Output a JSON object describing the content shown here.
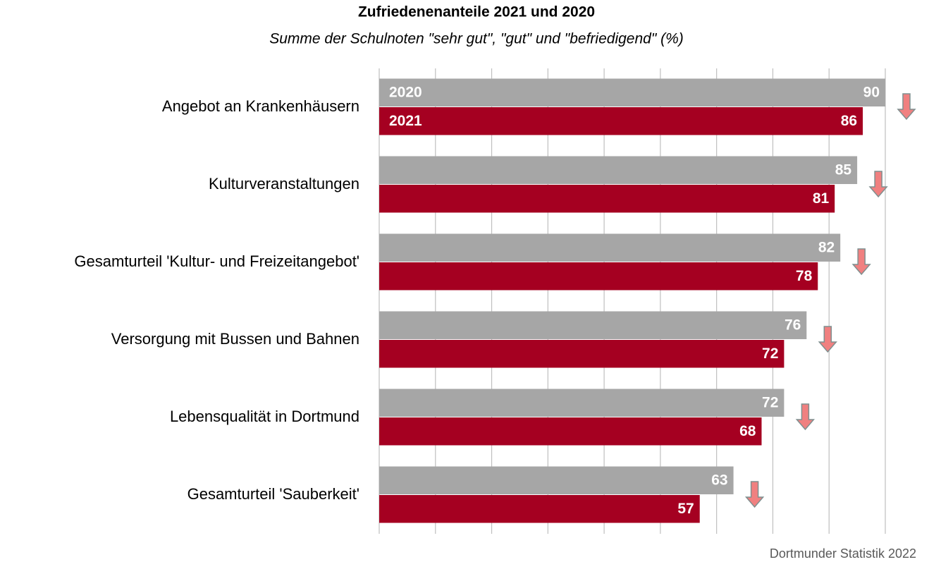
{
  "chart_data": {
    "type": "barh",
    "title": "Zufriedenenanteile 2021 und 2020",
    "subtitle": "Summe der Schulnoten \"sehr gut\", \"gut\" und \"befriedigend\" (%)",
    "source": "Dortmunder Statistik 2022",
    "categories": [
      "Angebot an Krankenhäusern",
      "Kulturveranstaltungen",
      "Gesamturteil 'Kultur- und Freizeitangebot'",
      "Versorgung mit Bussen und Bahnen",
      "Lebensqualität in Dortmund",
      "Gesamturteil 'Sauberkeit'"
    ],
    "series": [
      {
        "name": "2020",
        "color": "#a6a6a6",
        "values": [
          90,
          85,
          82,
          76,
          72,
          63
        ]
      },
      {
        "name": "2021",
        "color": "#a50021",
        "values": [
          86,
          81,
          78,
          72,
          68,
          57
        ]
      }
    ],
    "xlim": [
      0,
      90
    ],
    "xticks": [
      0,
      10,
      20,
      30,
      40,
      50,
      60,
      70,
      80,
      90
    ],
    "grid": true,
    "legend": "inside",
    "arrow_color": "#f08080"
  }
}
